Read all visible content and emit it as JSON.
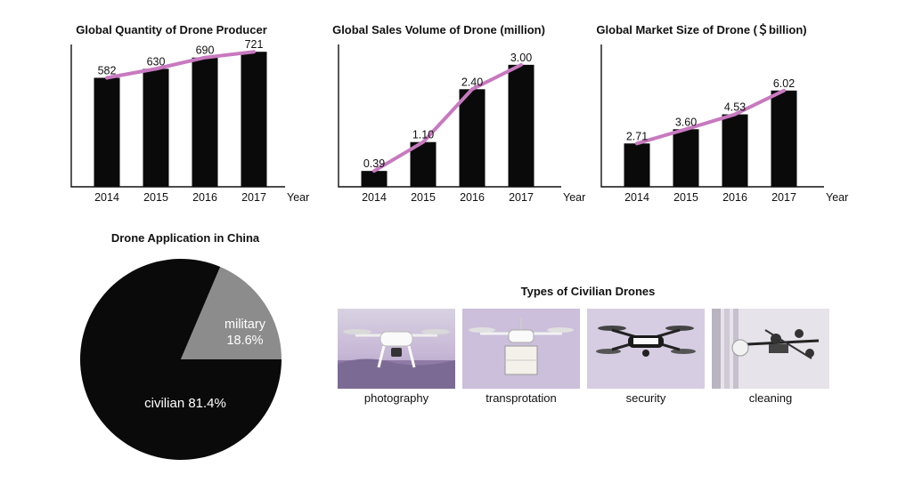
{
  "chart_data": [
    {
      "type": "bar",
      "title": "Global Quantity of Drone Producer",
      "categories": [
        "2014",
        "2015",
        "2016",
        "2017"
      ],
      "values": [
        582,
        630,
        690,
        721
      ],
      "labels": [
        "582",
        "630",
        "690",
        "721"
      ],
      "xlabel": "Year",
      "ylabel": "",
      "ylim": [
        0,
        760
      ],
      "trend_line": true,
      "bar_color": "#0a0a0a",
      "line_color": "#c879bf",
      "grid": false
    },
    {
      "type": "bar",
      "title": "Global Sales Volume of Drone (million)",
      "categories": [
        "2014",
        "2015",
        "2016",
        "2017"
      ],
      "values": [
        0.39,
        1.1,
        2.4,
        3.0
      ],
      "labels": [
        "0.39",
        "1.10",
        "2.40",
        "3.00"
      ],
      "xlabel": "Year",
      "ylabel": "",
      "ylim": [
        0,
        3.5
      ],
      "trend_line": true,
      "bar_color": "#0a0a0a",
      "line_color": "#c879bf",
      "grid": false
    },
    {
      "type": "bar",
      "title": "Global Market Size of Drone (＄billion)",
      "categories": [
        "2014",
        "2015",
        "2016",
        "2017"
      ],
      "values": [
        2.71,
        3.6,
        4.53,
        6.02
      ],
      "labels": [
        "2.71",
        "3.60",
        "4.53",
        "6.02"
      ],
      "xlabel": "Year",
      "ylabel": "",
      "ylim": [
        0,
        8.9
      ],
      "trend_line": true,
      "bar_color": "#0a0a0a",
      "line_color": "#c879bf",
      "grid": false
    },
    {
      "type": "pie",
      "title": "Drone Application in China",
      "slices": [
        {
          "name": "civilian",
          "value": 81.4,
          "label": "civilian 81.4%",
          "color": "#0a0a0a"
        },
        {
          "name": "military",
          "value": 18.6,
          "label_name": "military",
          "label_value": "18.6%",
          "color": "#8c8c8c"
        }
      ]
    }
  ],
  "civilian_types": {
    "title": "Types of Civilian Drones",
    "items": [
      {
        "label": "photography",
        "icon": "photography-drone-icon"
      },
      {
        "label": "transprotation",
        "icon": "delivery-drone-icon"
      },
      {
        "label": "security",
        "icon": "police-drone-icon"
      },
      {
        "label": "cleaning",
        "icon": "cleaning-drone-icon"
      }
    ]
  }
}
